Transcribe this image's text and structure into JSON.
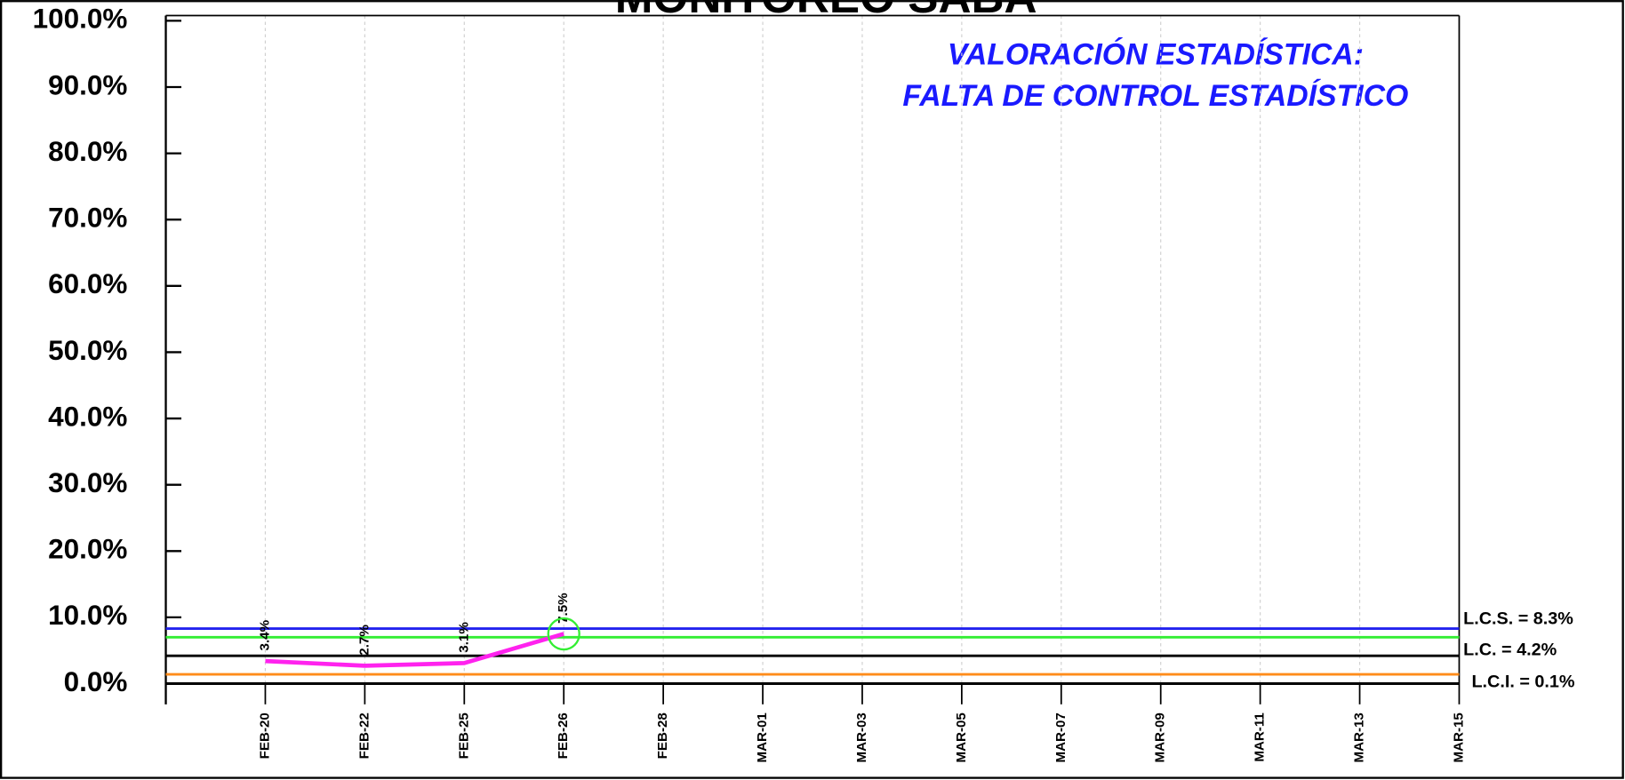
{
  "chart_data": {
    "type": "line",
    "title": "MONITOREO SABA",
    "annotation": [
      "VALORACIÓN ESTADÍSTICA:",
      "FALTA DE CONTROL ESTADÍSTICO"
    ],
    "annotation_color": "#1a1aff",
    "categories": [
      "FEB-20",
      "FEB-22",
      "FEB-25",
      "FEB-26",
      "FEB-28",
      "MAR-01",
      "MAR-03",
      "MAR-05",
      "MAR-07",
      "MAR-09",
      "MAR-11",
      "MAR-13",
      "MAR-15"
    ],
    "series": [
      {
        "name": "SABA",
        "color": "#ff22ee",
        "values": [
          3.4,
          2.7,
          3.1,
          7.5,
          null,
          null,
          null,
          null,
          null,
          null,
          null,
          null,
          null
        ],
        "value_labels": [
          "3.4%",
          "2.7%",
          "3.1%",
          "7.5%",
          null,
          null,
          null,
          null,
          null,
          null,
          null,
          null,
          null
        ]
      }
    ],
    "highlight_category": "FEB-26",
    "highlight_color": "#33ee33",
    "reference_lines": [
      {
        "value": 8.3,
        "color": "#2222ee"
      },
      {
        "value": 7.0,
        "color": "#33ee33"
      },
      {
        "value": 4.2,
        "color": "#000000"
      },
      {
        "value": 1.4,
        "color": "#ff8c1a"
      }
    ],
    "limit_labels": [
      "L.C.S. = 8.3%",
      "L.C. = 4.2%",
      "L.C.I. = 0.1%"
    ],
    "ylim": [
      0,
      100
    ],
    "yticks": [
      {
        "value": 0,
        "label": "0.0%"
      },
      {
        "value": 10,
        "label": "10.0%"
      },
      {
        "value": 20,
        "label": "20.0%"
      },
      {
        "value": 30,
        "label": "30.0%"
      },
      {
        "value": 40,
        "label": "40.0%"
      },
      {
        "value": 50,
        "label": "50.0%"
      },
      {
        "value": 60,
        "label": "60.0%"
      },
      {
        "value": 70,
        "label": "70.0%"
      },
      {
        "value": 80,
        "label": "80.0%"
      },
      {
        "value": 90,
        "label": "90.0%"
      },
      {
        "value": 100,
        "label": "100.0%"
      }
    ],
    "grid": true
  }
}
